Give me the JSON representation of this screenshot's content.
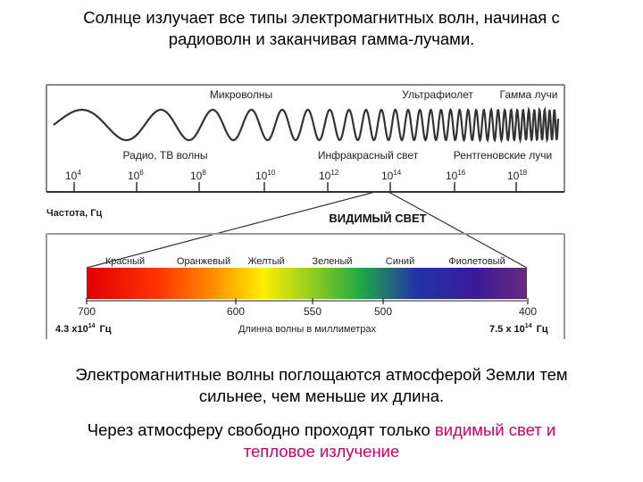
{
  "title_line1": "Солнце излучает все типы электромагнитных волн, начиная с",
  "title_line2": "радиоволн и заканчивая гамма-лучами.",
  "spectrum": {
    "top_labels": [
      "Микроволны",
      "Ультрафиолет",
      "Гамма лучи"
    ],
    "bottom_labels": [
      "Радио, ТВ волны",
      "Инфракрасный свет",
      "Рентгеновские лучи"
    ],
    "freq_ticks": [
      {
        "base": "10",
        "exp": "4"
      },
      {
        "base": "10",
        "exp": "6"
      },
      {
        "base": "10",
        "exp": "8"
      },
      {
        "base": "10",
        "exp": "10"
      },
      {
        "base": "10",
        "exp": "12"
      },
      {
        "base": "10",
        "exp": "14"
      },
      {
        "base": "10",
        "exp": "16"
      },
      {
        "base": "10",
        "exp": "18"
      }
    ],
    "axis_label": "Частота, Гц"
  },
  "visible": {
    "heading": "ВИДИМЫЙ СВЕТ",
    "color_names": [
      "Красный",
      "Оранжевый",
      "Желтый",
      "Зеленый",
      "Синий",
      "Фиолетовый"
    ],
    "wavelength_ticks": [
      "700",
      "600",
      "550",
      "500",
      "400"
    ],
    "left_freq": {
      "prefix": "4.3 x10",
      "exp": "14",
      "unit": "Гц"
    },
    "right_freq": {
      "prefix": "7.5 x 10",
      "exp": "14",
      "unit": "Гц"
    },
    "axis_label": "Длинна волны в миллиметрах",
    "colors": [
      "#e60000",
      "#ff6600",
      "#ffee00",
      "#22aa22",
      "#1a1aaa",
      "#5a1a7a"
    ]
  },
  "caption1_line1": "Электромагнитные волны поглощаются атмосферой Земли тем",
  "caption1_line2": "сильнее, чем меньше их длина.",
  "caption2_line1_plain": "Через атмосферу свободно проходят только ",
  "caption2_line1_hl": "видимый свет и",
  "caption2_line2_hl": "тепловое излучение"
}
